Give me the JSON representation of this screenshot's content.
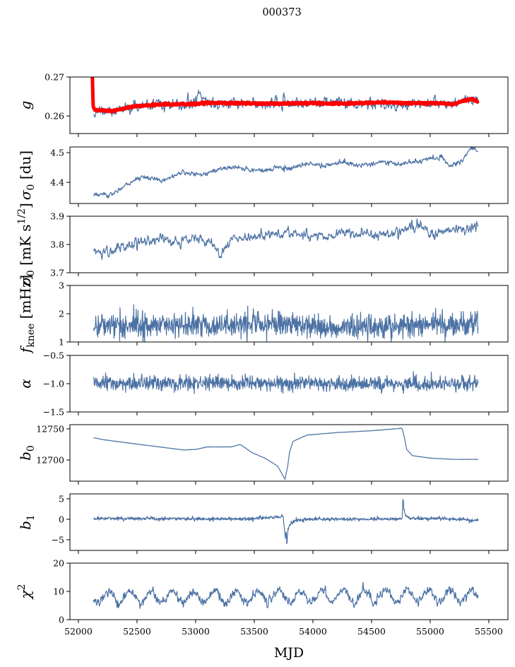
{
  "chart_data": {
    "type": "line",
    "title": "000373",
    "xlabel": "MJD",
    "xlim": [
      51928,
      55663
    ],
    "xticks": [
      52000,
      52500,
      53000,
      53500,
      54000,
      54500,
      55000,
      55500
    ],
    "xtick_labels": [
      "52000",
      "52500",
      "53000",
      "53500",
      "54000",
      "54500",
      "55000",
      "55500"
    ],
    "x_data_range": [
      52130,
      55410
    ],
    "grid": false,
    "panels": [
      {
        "ylabel": [
          {
            "t": "g",
            "s": "it"
          }
        ],
        "ylim": [
          0.2555,
          0.27
        ],
        "yticks": [
          0.26,
          0.27
        ],
        "ytick_labels": [
          "0.26",
          "0.27"
        ],
        "series": [
          {
            "name": "g",
            "color": "#4c72a4",
            "noise": 0.0007,
            "smooth": 3,
            "seed": 11,
            "knots": [
              [
                52130,
                0.2612
              ],
              [
                52300,
                0.2612
              ],
              [
                52500,
                0.2624
              ],
              [
                52900,
                0.2628
              ],
              [
                52980,
                0.2632
              ],
              [
                53030,
                0.2662
              ],
              [
                53080,
                0.264
              ],
              [
                53150,
                0.263
              ],
              [
                54000,
                0.2632
              ],
              [
                54400,
                0.2635
              ],
              [
                54700,
                0.2628
              ],
              [
                55000,
                0.2636
              ],
              [
                55200,
                0.263
              ],
              [
                55300,
                0.2645
              ],
              [
                55410,
                0.264
              ]
            ]
          },
          {
            "name": "g_smooth",
            "color": "#ff0000",
            "noise": 0.00012,
            "smooth": 1,
            "seed": 5,
            "width": 5,
            "knots": [
              [
                52118,
                0.271
              ],
              [
                52120,
                0.27
              ],
              [
                52124,
                0.265
              ],
              [
                52126,
                0.2625
              ],
              [
                52140,
                0.2615
              ],
              [
                52300,
                0.2613
              ],
              [
                52450,
                0.2624
              ],
              [
                52700,
                0.263
              ],
              [
                53000,
                0.2631
              ],
              [
                53100,
                0.2634
              ],
              [
                53500,
                0.2632
              ],
              [
                53800,
                0.2632
              ],
              [
                54000,
                0.2633
              ],
              [
                54300,
                0.2632
              ],
              [
                54600,
                0.2635
              ],
              [
                54800,
                0.2633
              ],
              [
                55000,
                0.2633
              ],
              [
                55150,
                0.2632
              ],
              [
                55200,
                0.263
              ],
              [
                55300,
                0.264
              ],
              [
                55350,
                0.2644
              ],
              [
                55410,
                0.2637
              ]
            ]
          }
        ]
      },
      {
        "ylabel": [
          {
            "t": "σ",
            "s": "it"
          },
          {
            "t": "0",
            "s": "sub"
          },
          {
            "t": " [du]"
          }
        ],
        "ylim": [
          4.329,
          4.519
        ],
        "yticks": [
          4.4,
          4.5
        ],
        "ytick_labels": [
          "4.4",
          "4.5"
        ],
        "series": [
          {
            "name": "sigma0_du",
            "color": "#4c72a4",
            "noise": 0.004,
            "smooth": 2,
            "seed": 21,
            "knots": [
              [
                52130,
                4.362
              ],
              [
                52250,
                4.355
              ],
              [
                52330,
                4.37
              ],
              [
                52400,
                4.39
              ],
              [
                52550,
                4.42
              ],
              [
                52700,
                4.405
              ],
              [
                52900,
                4.435
              ],
              [
                53050,
                4.425
              ],
              [
                53200,
                4.445
              ],
              [
                53350,
                4.45
              ],
              [
                53500,
                4.44
              ],
              [
                53650,
                4.44
              ],
              [
                53700,
                4.455
              ],
              [
                53800,
                4.445
              ],
              [
                53950,
                4.465
              ],
              [
                54100,
                4.455
              ],
              [
                54250,
                4.47
              ],
              [
                54400,
                4.455
              ],
              [
                54600,
                4.47
              ],
              [
                54750,
                4.46
              ],
              [
                54950,
                4.475
              ],
              [
                55100,
                4.485
              ],
              [
                55160,
                4.455
              ],
              [
                55270,
                4.475
              ],
              [
                55360,
                4.518
              ],
              [
                55410,
                4.505
              ]
            ]
          }
        ]
      },
      {
        "ylabel": [
          {
            "t": "σ",
            "s": "it"
          },
          {
            "t": "0",
            "s": "sub"
          },
          {
            "t": " [mK s"
          },
          {
            "t": "1/2",
            "s": "sup"
          },
          {
            "t": "]"
          }
        ],
        "ylim": [
          3.7,
          3.9
        ],
        "yticks": [
          3.7,
          3.8,
          3.9
        ],
        "ytick_labels": [
          "3.7",
          "3.8",
          "3.9"
        ],
        "series": [
          {
            "name": "sigma0_mK",
            "color": "#4c72a4",
            "noise": 0.009,
            "smooth": 3,
            "seed": 31,
            "knots": [
              [
                52130,
                3.775
              ],
              [
                52200,
                3.77
              ],
              [
                52450,
                3.8
              ],
              [
                52700,
                3.82
              ],
              [
                52850,
                3.81
              ],
              [
                53000,
                3.82
              ],
              [
                53150,
                3.805
              ],
              [
                53210,
                3.765
              ],
              [
                53300,
                3.82
              ],
              [
                53600,
                3.835
              ],
              [
                53800,
                3.84
              ],
              [
                54000,
                3.83
              ],
              [
                54300,
                3.84
              ],
              [
                54600,
                3.835
              ],
              [
                54800,
                3.85
              ],
              [
                54860,
                3.87
              ],
              [
                55000,
                3.84
              ],
              [
                55200,
                3.85
              ],
              [
                55410,
                3.86
              ]
            ]
          }
        ]
      },
      {
        "ylabel": [
          {
            "t": "f",
            "s": "it"
          },
          {
            "t": "knee",
            "s": "sub"
          },
          {
            "t": " [mHz]"
          }
        ],
        "ylim": [
          1,
          3
        ],
        "yticks": [
          1,
          2,
          3
        ],
        "ytick_labels": [
          "1",
          "2",
          "3"
        ],
        "series": [
          {
            "name": "fknee",
            "color": "#4c72a4",
            "noise": 0.22,
            "smooth": 1,
            "seed": 41,
            "knots": [
              [
                52130,
                1.6
              ],
              [
                53000,
                1.6
              ],
              [
                53700,
                1.65
              ],
              [
                54200,
                1.5
              ],
              [
                54700,
                1.6
              ],
              [
                55410,
                1.65
              ]
            ]
          }
        ]
      },
      {
        "ylabel": [
          {
            "t": "α",
            "s": "it"
          }
        ],
        "ylim": [
          -1.5,
          -0.5
        ],
        "yticks": [
          -1.5,
          -1.0,
          -0.5
        ],
        "ytick_labels": [
          "−1.5",
          "−1.0",
          "−0.5"
        ],
        "series": [
          {
            "name": "alpha",
            "color": "#4c72a4",
            "noise": 0.065,
            "smooth": 1,
            "seed": 51,
            "knots": [
              [
                52130,
                -1.0
              ],
              [
                55410,
                -1.0
              ]
            ]
          }
        ]
      },
      {
        "ylabel": [
          {
            "t": "b",
            "s": "it"
          },
          {
            "t": "0",
            "s": "sub"
          }
        ],
        "ylim": [
          12666,
          12756.8
        ],
        "yticks": [
          12700,
          12750
        ],
        "ytick_labels": [
          "12700",
          "12750"
        ],
        "series": [
          {
            "name": "b0",
            "color": "#4c72a4",
            "noise": 0.15,
            "smooth": 1,
            "seed": 61,
            "knots": [
              [
                52130,
                12736
              ],
              [
                52200,
                12733
              ],
              [
                52400,
                12728
              ],
              [
                52650,
                12722
              ],
              [
                52900,
                12716
              ],
              [
                53000,
                12717
              ],
              [
                53100,
                12721
              ],
              [
                53300,
                12721
              ],
              [
                53380,
                12725
              ],
              [
                53480,
                12712
              ],
              [
                53600,
                12702
              ],
              [
                53700,
                12690
              ],
              [
                53762,
                12669
              ],
              [
                53785,
                12690
              ],
              [
                53800,
                12712
              ],
              [
                53830,
                12730
              ],
              [
                53950,
                12740
              ],
              [
                54200,
                12744
              ],
              [
                54500,
                12747
              ],
              [
                54760,
                12751
              ],
              [
                54775,
                12740
              ],
              [
                54800,
                12717
              ],
              [
                54850,
                12707
              ],
              [
                55000,
                12703
              ],
              [
                55200,
                12701
              ],
              [
                55410,
                12701
              ]
            ]
          }
        ]
      },
      {
        "ylabel": [
          {
            "t": "b",
            "s": "it"
          },
          {
            "t": "1",
            "s": "sub"
          }
        ],
        "ylim": [
          -7.6,
          6.2
        ],
        "yticks": [
          -5,
          0,
          5
        ],
        "ytick_labels": [
          "−5",
          "0",
          "5"
        ],
        "series": [
          {
            "name": "b1",
            "color": "#4c72a4",
            "noise": 0.22,
            "smooth": 1,
            "seed": 71,
            "knots": [
              [
                52130,
                0.2
              ],
              [
                53500,
                0.1
              ],
              [
                53700,
                0.6
              ],
              [
                53745,
                0.8
              ],
              [
                53755,
                -1.5
              ],
              [
                53765,
                -4.5
              ],
              [
                53772,
                -2.5
              ],
              [
                53778,
                -7.0
              ],
              [
                53784,
                -3.0
              ],
              [
                53800,
                -1.5
              ],
              [
                53850,
                -0.3
              ],
              [
                53950,
                0
              ],
              [
                54760,
                0.1
              ],
              [
                54768,
                5.5
              ],
              [
                54775,
                2.5
              ],
              [
                54790,
                1.0
              ],
              [
                54820,
                0.3
              ],
              [
                55300,
                0
              ],
              [
                55330,
                -0.5
              ],
              [
                55410,
                -0.1
              ]
            ]
          }
        ]
      },
      {
        "ylabel": [
          {
            "t": "χ",
            "s": "it"
          },
          {
            "t": "2",
            "s": "sup"
          }
        ],
        "ylim": [
          0,
          20
        ],
        "yticks": [
          0,
          10,
          20
        ],
        "ytick_labels": [
          "0",
          "10",
          "20"
        ],
        "series": [
          {
            "name": "chi2",
            "color": "#4c72a4",
            "noise": 0.75,
            "smooth": 2,
            "seed": 81,
            "periodic": {
              "amplitude": 2.2,
              "period": 182,
              "peak_mjd": 52255
            },
            "knots": [
              [
                52130,
                8.0
              ],
              [
                55410,
                8.5
              ]
            ]
          }
        ]
      }
    ]
  }
}
